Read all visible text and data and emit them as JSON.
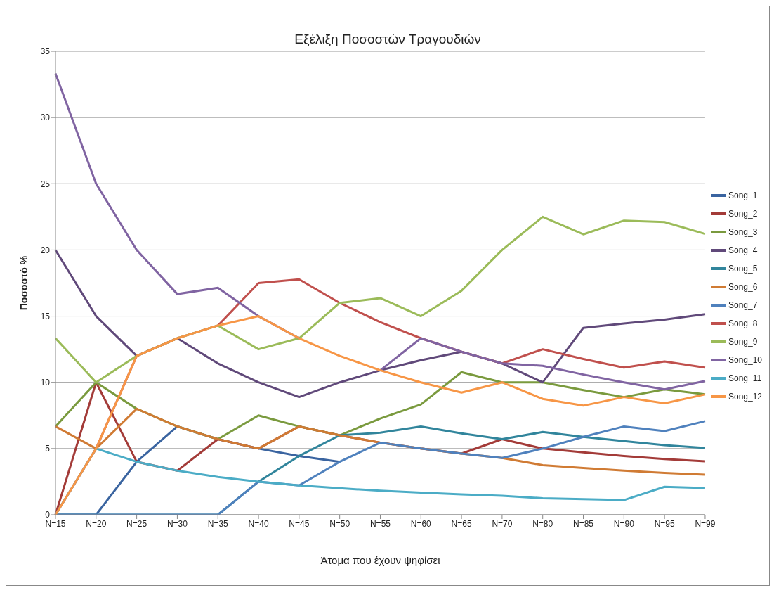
{
  "chart_data": {
    "type": "line",
    "title": "Εξέλιξη Ποσοστών Τραγουδιών",
    "xlabel": "Άτομα που έχουν ψηφίσει",
    "ylabel": "Ποσοστό %",
    "categories": [
      "N=15",
      "N=20",
      "N=25",
      "N=30",
      "N=35",
      "N=40",
      "N=45",
      "N=50",
      "N=55",
      "N=60",
      "N=65",
      "N=70",
      "N=80",
      "N=85",
      "N=90",
      "N=95",
      "N=99"
    ],
    "series": [
      {
        "name": "Song_1",
        "color": "#3a64a0",
        "values": [
          0,
          0,
          4,
          6.67,
          5.71,
          5,
          4.44,
          4,
          null,
          null,
          null,
          null,
          null,
          null,
          null,
          null,
          null
        ]
      },
      {
        "name": "Song_2",
        "color": "#a33b38",
        "values": [
          0,
          10,
          4,
          3.33,
          5.71,
          5,
          6.67,
          6,
          5.45,
          5,
          4.62,
          5.71,
          5,
          4.71,
          4.44,
          4.21,
          4.04
        ]
      },
      {
        "name": "Song_3",
        "color": "#7a9a3e",
        "values": [
          6.67,
          10,
          8,
          6.67,
          5.71,
          7.5,
          6.67,
          6,
          7.27,
          8.33,
          10.77,
          10,
          10,
          9.41,
          8.89,
          9.47,
          9.09
        ]
      },
      {
        "name": "Song_4",
        "color": "#60497a",
        "values": [
          20,
          15,
          12,
          13.33,
          11.43,
          10,
          8.89,
          10,
          10.91,
          11.67,
          12.31,
          11.43,
          10,
          14.12,
          14.44,
          14.74,
          15.15
        ]
      },
      {
        "name": "Song_5",
        "color": "#31859c",
        "values": [
          0,
          0,
          0,
          0,
          0,
          2.5,
          4.44,
          6,
          6.2,
          6.67,
          6.15,
          5.71,
          6.25,
          5.88,
          5.56,
          5.26,
          5.05
        ]
      },
      {
        "name": "Song_6",
        "color": "#d07b34",
        "values": [
          6.67,
          5,
          8,
          6.67,
          5.71,
          5,
          6.67,
          6,
          5.45,
          5,
          4.62,
          4.29,
          3.75,
          3.53,
          3.33,
          3.16,
          3.03
        ]
      },
      {
        "name": "Song_7",
        "color": "#4f81bd",
        "values": [
          0,
          0,
          0,
          0,
          0,
          2.5,
          2.22,
          4,
          5.45,
          5,
          4.62,
          4.29,
          5,
          5.88,
          6.67,
          6.32,
          7.07
        ]
      },
      {
        "name": "Song_8",
        "color": "#c0504d",
        "values": [
          0,
          5,
          12,
          13.33,
          14.29,
          17.5,
          17.78,
          16,
          14.55,
          13.33,
          12.31,
          11.43,
          12.5,
          11.76,
          11.11,
          11.58,
          11.11
        ]
      },
      {
        "name": "Song_9",
        "color": "#9bbb59",
        "values": [
          13.33,
          10,
          12,
          13.33,
          14.29,
          12.5,
          13.33,
          16,
          16.36,
          15,
          16.92,
          20,
          22.5,
          21.18,
          22.22,
          22.11,
          21.21
        ]
      },
      {
        "name": "Song_10",
        "color": "#8064a2",
        "values": [
          33.33,
          25,
          20,
          16.67,
          17.14,
          15,
          13.33,
          null,
          10.91,
          13.33,
          12.31,
          11.43,
          11.25,
          10.59,
          10,
          9.47,
          10.1
        ]
      },
      {
        "name": "Song_11",
        "color": "#4bacc6",
        "values": [
          0,
          5,
          4,
          3.33,
          2.86,
          2.5,
          2.22,
          2,
          1.82,
          1.67,
          1.54,
          1.43,
          1.25,
          1.18,
          1.11,
          2.11,
          2.02
        ]
      },
      {
        "name": "Song_12",
        "color": "#f79646",
        "values": [
          0,
          5,
          12,
          13.33,
          14.29,
          15,
          13.33,
          12,
          10.91,
          10,
          9.23,
          10,
          8.75,
          8.24,
          8.89,
          8.42,
          9.09
        ]
      }
    ],
    "ylim": [
      0,
      35
    ],
    "yticks": [
      0,
      5,
      10,
      15,
      20,
      25,
      30,
      35
    ],
    "grid": "y",
    "legend": "right",
    "marker": "none",
    "line_style": "solid"
  }
}
